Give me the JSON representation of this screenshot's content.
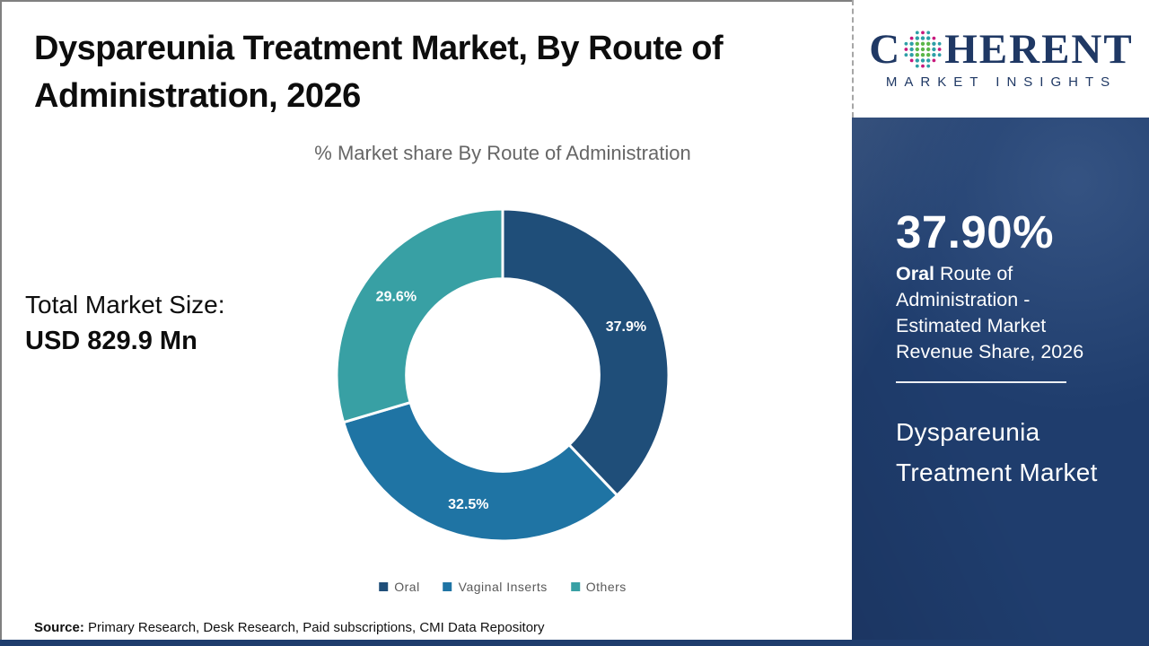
{
  "header": {
    "title": "Dyspareunia Treatment Market, By Route of Administration, 2026",
    "subtitle": "% Market share By Route of Administration"
  },
  "totals": {
    "label": "Total Market Size:",
    "value": "USD 829.9 Mn"
  },
  "logo": {
    "word_start": "C",
    "word_end": "HERENT",
    "tagline": "MARKET INSIGHTS",
    "brand_color": "#1f3864",
    "globe_colors": {
      "inner": "#5bb649",
      "mid": "#2e9fa6",
      "accent": "#c8197c"
    }
  },
  "sidebar": {
    "highlight_value": "37.90%",
    "highlight_bold": "Oral",
    "highlight_rest": " Route of Administration - Estimated Market Revenue Share, 2026",
    "market_line1": "Dyspareunia",
    "market_line2": "Treatment Market",
    "background_color": "#1f3d6d"
  },
  "source": {
    "label": "Source:",
    "text": " Primary Research, Desk Research, Paid subscriptions, CMI Data Repository"
  },
  "chart_data": {
    "type": "pie",
    "donut": true,
    "title": "% Market share By Route of Administration",
    "categories": [
      "Oral",
      "Vaginal Inserts",
      "Others"
    ],
    "values": [
      37.9,
      32.5,
      29.6
    ],
    "labels": [
      "37.9%",
      "32.5%",
      "29.6%"
    ],
    "colors": [
      "#1f4e79",
      "#1f74a4",
      "#38a0a4"
    ],
    "start_angle_deg": 0,
    "direction": "clockwise",
    "inner_radius_ratio": 0.58,
    "label_radius_ratio": 0.8,
    "legend_position": "bottom",
    "slice_separator_color": "#ffffff"
  }
}
